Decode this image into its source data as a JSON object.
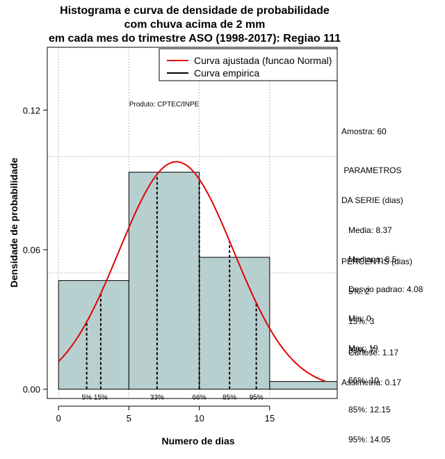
{
  "title_lines": [
    "Histograma e curva de densidade de probabilidade",
    "com chuva acima de 2 mm",
    "em cada mes do trimestre ASO (1998-2017): Regiao 111"
  ],
  "product_label": "Produto: CPTEC/INPE",
  "legend": {
    "normal": "Curva ajustada (funcao Normal)",
    "empirical": "Curva empirica"
  },
  "sample": "Amostra: 60",
  "params_lines": [
    " PARAMETROS",
    "DA SERIE (dias)",
    "   Media: 8.37",
    "   Mediana: 8.5",
    "   Desvio padrao: 4.08",
    "   Min: 0",
    "   Max: 19"
  ],
  "percentile_lines": [
    "PERCENTIS (dias)",
    "   5%: 2",
    "   15%: 3",
    "   33%: 7",
    "   66%: 10",
    "   85%: 12.15",
    "   95%: 14.05"
  ],
  "shape_lines": [
    "   Curtose: 1.17",
    "Assimetria: 0.17"
  ],
  "colors": {
    "bars": "#b8cfcf",
    "normal_curve": "#e00000",
    "grid": "#bdbdbd"
  },
  "chart_data": {
    "type": "bar",
    "title": "Histograma e curva de densidade de probabilidade com chuva acima de 2 mm em cada mes do trimestre ASO (1998-2017): Regiao 111",
    "xlabel": "Numero de dias",
    "ylabel": "Densidade de probabilidade",
    "xlim": [
      -0.8,
      19.8
    ],
    "ylim": [
      -0.004,
      0.147
    ],
    "xticks": [
      0,
      5,
      10,
      15
    ],
    "yticks": [
      0.0,
      0.06,
      0.12
    ],
    "ytick_labels": [
      "0.00",
      "0.06",
      "0.12"
    ],
    "grid": true,
    "legend_position": "top-right",
    "bins": [
      {
        "x0": 0,
        "x1": 5,
        "density": 0.0467
      },
      {
        "x0": 5,
        "x1": 10,
        "density": 0.0933
      },
      {
        "x0": 10,
        "x1": 15,
        "density": 0.0567
      },
      {
        "x0": 15,
        "x1": 20,
        "density": 0.0033
      }
    ],
    "normal_fit": {
      "mean": 8.37,
      "sd": 4.08,
      "x_range": [
        0,
        19
      ]
    },
    "percentile_lines": [
      {
        "label": "5%",
        "x": 2
      },
      {
        "label": "15%",
        "x": 3
      },
      {
        "label": "33%",
        "x": 7
      },
      {
        "label": "66%",
        "x": 10
      },
      {
        "label": "85%",
        "x": 12.15
      },
      {
        "label": "95%",
        "x": 14.05
      }
    ]
  }
}
